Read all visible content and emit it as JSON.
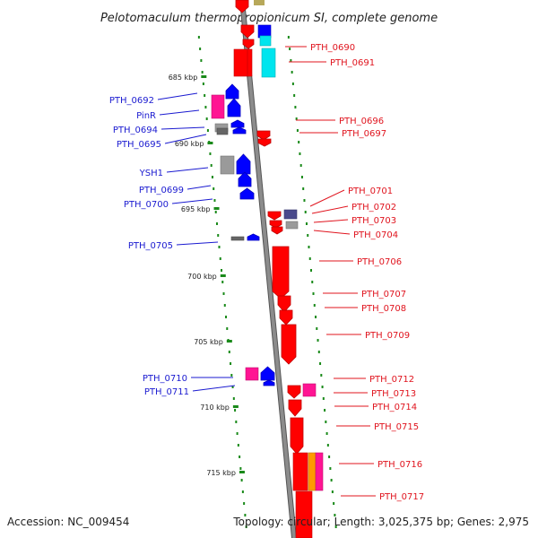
{
  "title": "Pelotomaculum thermopropionicum SI, complete genome",
  "footer": {
    "accession": "Accession: NC_009454",
    "topology": "Topology: circular; Length: 3,025,375 bp; Genes: 2,975"
  },
  "colors": {
    "backbone": "#8c8c8c",
    "forward": "#ff0000",
    "reverse": "#0000ff",
    "tick": "#1a8a1a",
    "label_right": "#e0141e",
    "label_left": "#1a1ad0",
    "magenta": "#ff1493",
    "cyan": "#00e5ee",
    "orange": "#ff9a00",
    "slate": "#4a4a8c",
    "grey": "#9a9a9a"
  },
  "kbp_ticks": [
    "685 kbp",
    "690 kbp",
    "695 kbp",
    "700 kbp",
    "705 kbp",
    "710 kbp",
    "715 kbp"
  ],
  "right_labels": [
    "PTH_0690",
    "PTH_0691",
    "PTH_0696",
    "PTH_0697",
    "PTH_0701",
    "PTH_0702",
    "PTH_0703",
    "PTH_0704",
    "PTH_0706",
    "PTH_0707",
    "PTH_0708",
    "PTH_0709",
    "PTH_0712",
    "PTH_0713",
    "PTH_0714",
    "PTH_0715",
    "PTH_0716",
    "PTH_0717"
  ],
  "left_labels": [
    "PTH_0692",
    "PinR",
    "PTH_0694",
    "PTH_0695",
    "YSH1",
    "PTH_0699",
    "PTH_0700",
    "PTH_0705",
    "PTH_0710",
    "PTH_0711"
  ]
}
